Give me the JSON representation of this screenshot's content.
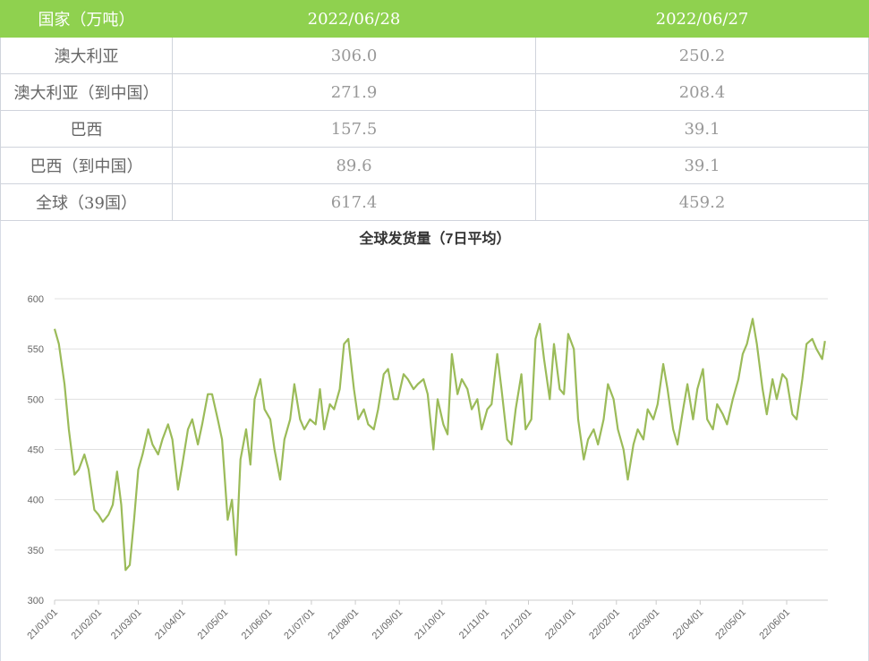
{
  "table": {
    "header": [
      "国家（万吨）",
      "2022/06/28",
      "2022/06/27"
    ],
    "rows": [
      [
        "澳大利亚",
        "306.0",
        "250.2"
      ],
      [
        "澳大利亚（到中国）",
        "271.9",
        "208.4"
      ],
      [
        "巴西",
        "157.5",
        "39.1"
      ],
      [
        "巴西（到中国）",
        "89.6",
        "39.1"
      ],
      [
        "全球（39国）",
        "617.4",
        "459.2"
      ]
    ]
  },
  "chart_data": {
    "type": "line",
    "title": "全球发货量（7日平均）",
    "color": "#9bbb59",
    "grid": true,
    "x": [
      "21/01/01",
      "21/01/04",
      "21/01/08",
      "21/01/11",
      "21/01/15",
      "21/01/18",
      "21/01/22",
      "21/01/25",
      "21/01/29",
      "21/02/01",
      "21/02/04",
      "21/02/08",
      "21/02/11",
      "21/02/14",
      "21/02/17",
      "21/02/20",
      "21/02/23",
      "21/02/26",
      "21/03/01",
      "21/03/04",
      "21/03/08",
      "21/03/11",
      "21/03/15",
      "21/03/18",
      "21/03/22",
      "21/03/25",
      "21/03/29",
      "21/04/01",
      "21/04/05",
      "21/04/08",
      "21/04/12",
      "21/04/15",
      "21/04/19",
      "21/04/22",
      "21/04/26",
      "21/04/29",
      "21/05/03",
      "21/05/06",
      "21/05/09",
      "21/05/12",
      "21/05/16",
      "21/05/19",
      "21/05/22",
      "21/05/26",
      "21/05/29",
      "21/06/02",
      "21/06/05",
      "21/06/09",
      "21/06/12",
      "21/06/16",
      "21/06/19",
      "21/06/23",
      "21/06/26",
      "21/06/30",
      "21/07/04",
      "21/07/07",
      "21/07/10",
      "21/07/14",
      "21/07/17",
      "21/07/21",
      "21/07/24",
      "21/07/27",
      "21/07/31",
      "21/08/03",
      "21/08/07",
      "21/08/10",
      "21/08/14",
      "21/08/17",
      "21/08/21",
      "21/08/24",
      "21/08/28",
      "21/08/31",
      "21/09/04",
      "21/09/07",
      "21/09/11",
      "21/09/14",
      "21/09/18",
      "21/09/21",
      "21/09/25",
      "21/09/28",
      "21/10/02",
      "21/10/05",
      "21/10/08",
      "21/10/12",
      "21/10/15",
      "21/10/19",
      "21/10/22",
      "21/10/26",
      "21/10/29",
      "21/11/02",
      "21/11/05",
      "21/11/09",
      "21/11/12",
      "21/11/16",
      "21/11/19",
      "21/11/22",
      "21/11/26",
      "21/11/29",
      "21/12/03",
      "21/12/06",
      "21/12/09",
      "21/12/12",
      "21/12/16",
      "21/12/19",
      "21/12/23",
      "21/12/26",
      "21/12/29",
      "22/01/02",
      "22/01/05",
      "22/01/09",
      "22/01/12",
      "22/01/16",
      "22/01/19",
      "22/01/23",
      "22/01/26",
      "22/01/30",
      "22/02/02",
      "22/02/06",
      "22/02/09",
      "22/02/13",
      "22/02/16",
      "22/02/20",
      "22/02/23",
      "22/02/27",
      "22/03/02",
      "22/03/06",
      "22/03/09",
      "22/03/13",
      "22/03/16",
      "22/03/20",
      "22/03/23",
      "22/03/27",
      "22/03/30",
      "22/04/03",
      "22/04/06",
      "22/04/10",
      "22/04/13",
      "22/04/17",
      "22/04/20",
      "22/04/24",
      "22/04/28",
      "22/05/01",
      "22/05/04",
      "22/05/08",
      "22/05/11",
      "22/05/15",
      "22/05/18",
      "22/05/22",
      "22/05/25",
      "22/05/29",
      "22/06/01",
      "22/06/05",
      "22/06/08",
      "22/06/12",
      "22/06/15",
      "22/06/19",
      "22/06/22",
      "22/06/26",
      "22/06/28"
    ],
    "values": [
      570,
      555,
      515,
      470,
      425,
      430,
      445,
      430,
      390,
      385,
      378,
      385,
      395,
      428,
      395,
      330,
      335,
      380,
      430,
      445,
      470,
      455,
      445,
      460,
      475,
      460,
      410,
      435,
      470,
      480,
      455,
      475,
      505,
      505,
      480,
      460,
      380,
      400,
      345,
      440,
      470,
      435,
      500,
      520,
      490,
      480,
      450,
      420,
      460,
      480,
      515,
      480,
      470,
      480,
      475,
      510,
      470,
      495,
      490,
      510,
      555,
      560,
      510,
      480,
      490,
      475,
      470,
      490,
      525,
      530,
      500,
      500,
      525,
      520,
      510,
      515,
      520,
      505,
      450,
      500,
      475,
      465,
      545,
      505,
      520,
      510,
      490,
      500,
      470,
      490,
      495,
      545,
      510,
      460,
      455,
      490,
      525,
      470,
      480,
      560,
      575,
      540,
      500,
      555,
      510,
      505,
      565,
      550,
      480,
      440,
      460,
      470,
      455,
      480,
      515,
      500,
      470,
      450,
      420,
      455,
      470,
      460,
      490,
      480,
      495,
      535,
      510,
      470,
      455,
      490,
      515,
      480,
      510,
      530,
      480,
      470,
      495,
      485,
      475,
      500,
      520,
      545,
      555,
      580,
      555,
      510,
      485,
      520,
      500,
      525,
      520,
      485,
      480,
      520,
      555,
      560,
      550,
      540,
      558
    ],
    "xlim": [
      "21/01/01",
      "22/06/30"
    ],
    "xticks": [
      "21/01/01",
      "21/02/01",
      "21/03/01",
      "21/04/01",
      "21/05/01",
      "21/06/01",
      "21/07/01",
      "21/08/01",
      "21/09/01",
      "21/10/01",
      "21/11/01",
      "21/12/01",
      "22/01/01",
      "22/02/01",
      "22/03/01",
      "22/04/01",
      "22/05/01",
      "22/06/01"
    ],
    "ylim": [
      300,
      600
    ],
    "yticks": [
      300,
      350,
      400,
      450,
      500,
      550,
      600
    ]
  }
}
